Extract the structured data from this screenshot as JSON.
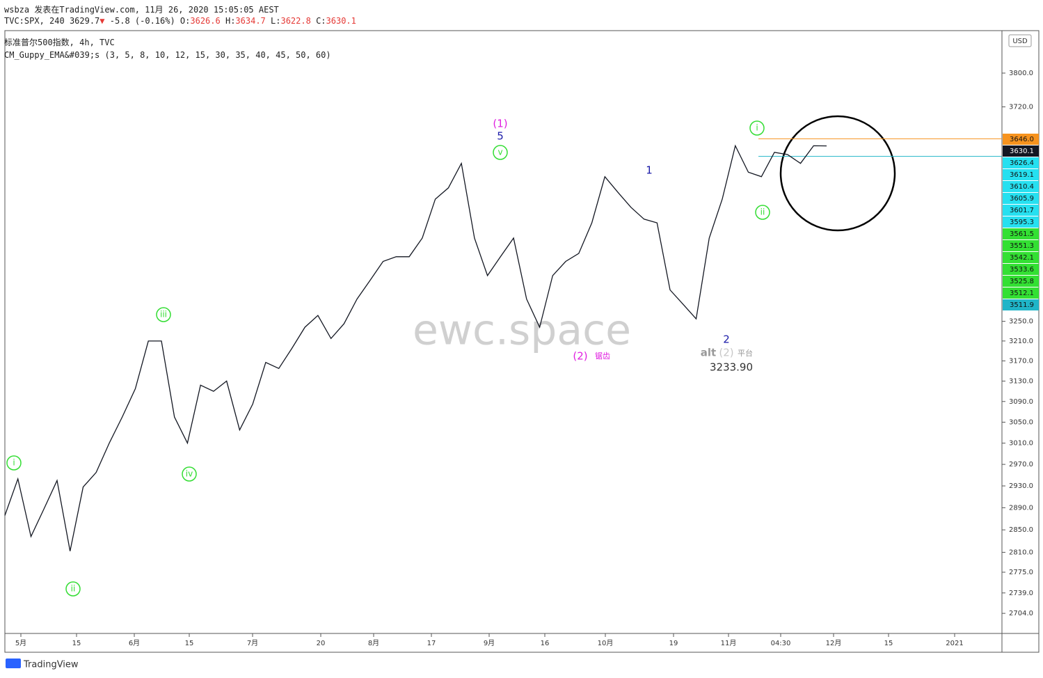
{
  "header": {
    "publisher": "wsbza 发表在TradingView.com, 11月 26, 2020 15:05:05 AEST",
    "symbol": "TVC:SPX, 240",
    "last": 3629.7,
    "arrow": "▼",
    "change": "-5.8 (-0.16%)",
    "ohlc": [
      {
        "label": "O:",
        "value": 3626.6
      },
      {
        "label": "H:",
        "value": 3634.7
      },
      {
        "label": "L:",
        "value": 3622.8
      },
      {
        "label": "C:",
        "value": 3630.1
      }
    ],
    "instrument": "标准普尔500指数, 4h, TVC",
    "indicator": "CM_Guppy_EMA&#039;s (3, 5, 8, 10, 12, 15, 30, 35, 40, 45, 50, 60)"
  },
  "chart_data": {
    "type": "line",
    "currency": "USD",
    "watermark": "ewc.space",
    "log_scale": true,
    "color": "#131722",
    "ylim": [
      2670,
      3903
    ],
    "yticks": [
      {
        "value": 3800,
        "label": "3800.0"
      },
      {
        "value": 3720,
        "label": "3720.0"
      },
      {
        "value": 3250,
        "label": "3250.0"
      },
      {
        "value": 3210,
        "label": "3210.0"
      },
      {
        "value": 3170,
        "label": "3170.0"
      },
      {
        "value": 3130,
        "label": "3130.0"
      },
      {
        "value": 3090,
        "label": "3090.0"
      },
      {
        "value": 3050,
        "label": "3050.0"
      },
      {
        "value": 3010,
        "label": "3010.0"
      },
      {
        "value": 2970,
        "label": "2970.0"
      },
      {
        "value": 2930,
        "label": "2930.0"
      },
      {
        "value": 2890,
        "label": "2890.0"
      },
      {
        "value": 2850,
        "label": "2850.0"
      },
      {
        "value": 2810,
        "label": "2810.0"
      },
      {
        "value": 2775,
        "label": "2775.0"
      },
      {
        "value": 2739,
        "label": "2739.0"
      },
      {
        "value": 2704,
        "label": "2704.0"
      }
    ],
    "x_labels": [
      "5月",
      "15",
      "6月",
      "15",
      "7月",
      "20",
      "8月",
      "17",
      "9月",
      "16",
      "10月",
      "19",
      "11月",
      "04:30",
      "12月",
      "15",
      "2021"
    ],
    "values": [
      2876,
      2943,
      2838,
      2888,
      2940,
      2812,
      2928,
      2955,
      3010,
      3060,
      3115,
      3210,
      3210,
      3060,
      3010,
      3122,
      3110,
      3130,
      3035,
      3085,
      3167,
      3155,
      3195,
      3238,
      3262,
      3215,
      3245,
      3296,
      3335,
      3375,
      3385,
      3385,
      3425,
      3510,
      3535,
      3590,
      3425,
      3345,
      3385,
      3425,
      3296,
      3238,
      3345,
      3375,
      3392,
      3458,
      3560,
      3525,
      3492,
      3466,
      3458,
      3315,
      3285,
      3255,
      3425,
      3510,
      3630,
      3570,
      3560,
      3615,
      3610,
      3590,
      3630,
      3629.7
    ],
    "price_tags": [
      {
        "value": 3646,
        "label": "3646.0",
        "color": "#f7931e"
      },
      {
        "value": 3630.1,
        "label": "3630.1",
        "color": "#131722"
      },
      {
        "value": 3626.4,
        "label": "3626.4",
        "color": "#26e0f0"
      },
      {
        "value": 3619.1,
        "label": "3619.1",
        "color": "#26e0f0"
      },
      {
        "value": 3610.4,
        "label": "3610.4",
        "color": "#26e0f0"
      },
      {
        "value": 3605.9,
        "label": "3605.9",
        "color": "#26e0f0"
      },
      {
        "value": 3601.7,
        "label": "3601.7",
        "color": "#26e0f0"
      },
      {
        "value": 3595.3,
        "label": "3595.3",
        "color": "#26e0f0"
      },
      {
        "value": 3561.5,
        "label": "3561.5",
        "color": "#33e033"
      },
      {
        "value": 3551.3,
        "label": "3551.3",
        "color": "#33e033"
      },
      {
        "value": 3542.1,
        "label": "3542.1",
        "color": "#33e033"
      },
      {
        "value": 3533.6,
        "label": "3533.6",
        "color": "#33e033"
      },
      {
        "value": 3525.8,
        "label": "3525.8",
        "color": "#33e033"
      },
      {
        "value": 3512.1,
        "label": "3512.1",
        "color": "#33e033"
      },
      {
        "value": 3511.9,
        "label": "3511.9",
        "color": "#20b5c8"
      }
    ],
    "horizontal_lines": [
      {
        "value": 3646,
        "color": "#f7931e"
      },
      {
        "value": 3605.9,
        "color": "#20b5c8"
      }
    ],
    "annotations": [
      {
        "text": "i",
        "color": "#33dd33",
        "circled": true
      },
      {
        "text": "ii",
        "color": "#33dd33",
        "circled": true
      },
      {
        "text": "iii",
        "color": "#33dd33",
        "circled": true
      },
      {
        "text": "iv",
        "color": "#33dd33",
        "circled": true
      },
      {
        "text": "v",
        "color": "#33dd33",
        "circled": true
      },
      {
        "text": "(1)",
        "color": "#e020e0",
        "circled": false
      },
      {
        "text": "5",
        "color": "#1a1aa8",
        "circled": false
      },
      {
        "text": "1",
        "color": "#1a1aa8",
        "circled": false
      },
      {
        "text": "(2)",
        "color": "#e020e0",
        "circled": false
      },
      {
        "text": "锯齿",
        "color": "#e020e0",
        "circled": false
      },
      {
        "text": "2",
        "color": "#1a1aa8",
        "circled": false
      },
      {
        "text": "alt",
        "color": "#999999",
        "circled": false
      },
      {
        "text": "(2)",
        "color": "#c8c8c8",
        "circled": false
      },
      {
        "text": "平台",
        "color": "#999999",
        "circled": false
      },
      {
        "text": "3233.90",
        "color": "#333333",
        "circled": false
      },
      {
        "text": "i",
        "color": "#33dd33",
        "circled": true
      },
      {
        "text": "ii",
        "color": "#33dd33",
        "circled": true
      }
    ]
  },
  "footer": {
    "brand": "TradingView"
  }
}
